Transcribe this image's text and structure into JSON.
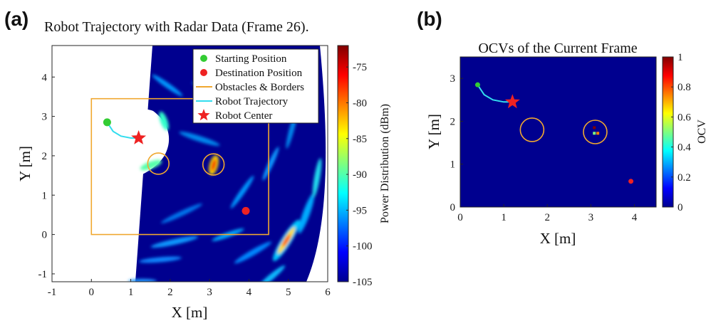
{
  "panels": {
    "a": {
      "label": "(a)",
      "title": "Robot Trajectory with Radar Data (Frame 26)."
    },
    "b": {
      "label": "(b)",
      "title": "OCVs of the Current Frame"
    }
  },
  "colors": {
    "field_background": "#00008f",
    "border": "#f0a830",
    "trajectory": "#33ddee",
    "start": "#33cc33",
    "destination": "#ee2222",
    "robot_center": "#ee2222"
  },
  "chart_data": [
    {
      "type": "heatmap",
      "panel": "a",
      "title": "Robot Trajectory with Radar Data (Frame 26).",
      "xlabel": "X [m]",
      "ylabel": "Y [m]",
      "xlim": [
        -1,
        6
      ],
      "ylim": [
        -1.2,
        4.8
      ],
      "xticks": [
        "-1",
        "0",
        "1",
        "2",
        "3",
        "4",
        "5",
        "6"
      ],
      "yticks": [
        "-1",
        "0",
        "1",
        "2",
        "3",
        "4"
      ],
      "colorbar": {
        "label": "Power Distribution (dBm)",
        "range": [
          -105,
          -72
        ],
        "ticks": [
          "-75",
          "-80",
          "-85",
          "-90",
          "-95",
          "-100",
          "-105"
        ]
      },
      "legend": {
        "placement": "top-right",
        "entries": [
          {
            "label": "Starting Position",
            "marker": "dot",
            "color": "#33cc33"
          },
          {
            "label": "Destination Position",
            "marker": "dot",
            "color": "#ee2222"
          },
          {
            "label": "Obstacles & Borders",
            "marker": "line",
            "color": "#f0a830"
          },
          {
            "label": "Robot Trajectory",
            "marker": "line",
            "color": "#33ddee"
          },
          {
            "label": "Robot Center",
            "marker": "star",
            "color": "#ee2222"
          }
        ]
      },
      "border_rect": {
        "x": [
          0,
          4.5
        ],
        "y": [
          0,
          3.45
        ]
      },
      "obstacles": [
        {
          "cx": 1.7,
          "cy": 1.8,
          "r": 0.27
        },
        {
          "cx": 3.1,
          "cy": 1.78,
          "r": 0.27
        }
      ],
      "start": {
        "x": 0.4,
        "y": 2.85
      },
      "destination": {
        "x": 3.92,
        "y": 0.6
      },
      "robot_center": {
        "x": 1.2,
        "y": 2.45
      },
      "trajectory": [
        [
          0.4,
          2.85
        ],
        [
          0.55,
          2.62
        ],
        [
          0.75,
          2.5
        ],
        [
          1.0,
          2.45
        ],
        [
          1.2,
          2.45
        ]
      ]
    },
    {
      "type": "heatmap",
      "panel": "b",
      "title": "OCVs of the Current Frame",
      "xlabel": "X [m]",
      "ylabel": "Y [m]",
      "xlim": [
        0,
        4.5
      ],
      "ylim": [
        0,
        3.5
      ],
      "xticks": [
        "0",
        "1",
        "2",
        "3",
        "4"
      ],
      "yticks": [
        "0",
        "1",
        "2",
        "3"
      ],
      "colorbar": {
        "label": "OCV",
        "range": [
          0,
          1
        ],
        "ticks": [
          "1",
          "0.8",
          "0.6",
          "0.4",
          "0.2",
          "0"
        ]
      },
      "obstacles": [
        {
          "cx": 1.65,
          "cy": 1.8,
          "r": 0.27
        },
        {
          "cx": 3.1,
          "cy": 1.75,
          "r": 0.27
        }
      ],
      "start": {
        "x": 0.4,
        "y": 2.85
      },
      "destination": {
        "x": 3.92,
        "y": 0.6
      },
      "robot_center": {
        "x": 1.2,
        "y": 2.45
      },
      "trajectory": [
        [
          0.4,
          2.85
        ],
        [
          0.55,
          2.62
        ],
        [
          0.75,
          2.5
        ],
        [
          1.0,
          2.45
        ],
        [
          1.2,
          2.45
        ]
      ],
      "ocv_cells": [
        {
          "x": 3.08,
          "y": 1.85,
          "value": 1.0
        },
        {
          "x": 3.16,
          "y": 1.85,
          "value": 0.0
        },
        {
          "x": 3.08,
          "y": 1.72,
          "value": 0.5
        },
        {
          "x": 3.16,
          "y": 1.72,
          "value": 0.75
        }
      ]
    }
  ]
}
